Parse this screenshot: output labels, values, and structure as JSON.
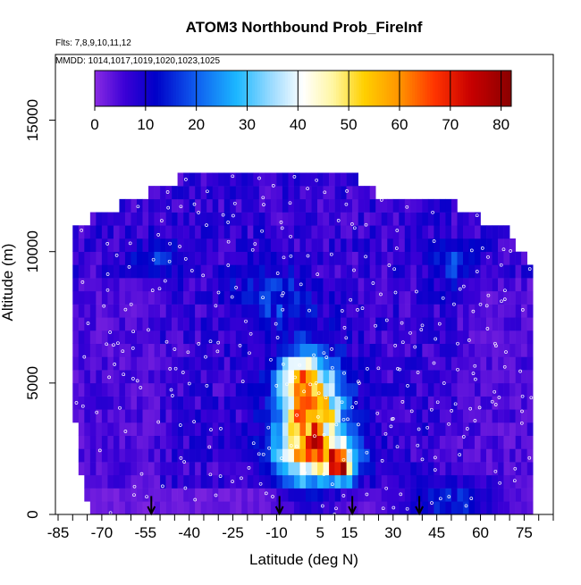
{
  "chart_data": {
    "type": "heatmap",
    "title": "ATOM3 Northbound Prob_FireInf",
    "subtitle_lines": [
      "Flts: 7,8,9,10,11,12",
      "MMDD: 1014,1017,1019,1020,1023,1025"
    ],
    "xlabel": "Latitude (deg N)",
    "ylabel": "Altitude (m)",
    "xlim": [
      -85,
      85
    ],
    "ylim": [
      0,
      17500
    ],
    "x_ticks": [
      -85,
      -80,
      -75,
      -70,
      -65,
      -60,
      -55,
      -50,
      -45,
      -40,
      -35,
      -30,
      -25,
      -20,
      -15,
      -10,
      -5,
      0,
      5,
      10,
      15,
      20,
      25,
      30,
      35,
      40,
      45,
      50,
      55,
      60,
      65,
      70,
      75,
      80,
      85
    ],
    "x_tick_labels": [
      "-85",
      "-70",
      "-55",
      "-40",
      "-25",
      "-10",
      "5",
      "15",
      "30",
      "45",
      "60",
      "75"
    ],
    "x_tick_label_values": [
      -85,
      -70,
      -55,
      -40,
      -25,
      -10,
      5,
      15,
      30,
      45,
      60,
      75
    ],
    "y_ticks": [
      0,
      5000,
      10000,
      15000
    ],
    "y_tick_labels": [
      "0",
      "5000",
      "10000",
      "15000"
    ],
    "colorbar": {
      "range": [
        0,
        82
      ],
      "ticks": [
        0,
        10,
        20,
        30,
        40,
        50,
        60,
        70,
        80
      ],
      "tick_labels": [
        "0",
        "10",
        "20",
        "30",
        "40",
        "50",
        "60",
        "70",
        "80"
      ],
      "stops": [
        {
          "v": 0,
          "color": "#8a2be2"
        },
        {
          "v": 6,
          "color": "#3a00d6"
        },
        {
          "v": 12,
          "color": "#0000c8"
        },
        {
          "v": 20,
          "color": "#0f5ef0"
        },
        {
          "v": 28,
          "color": "#1cb8ff"
        },
        {
          "v": 35,
          "color": "#9fdcff"
        },
        {
          "v": 41,
          "color": "#ffffff"
        },
        {
          "v": 47,
          "color": "#fff6a0"
        },
        {
          "v": 53,
          "color": "#ffd000"
        },
        {
          "v": 60,
          "color": "#ff9400"
        },
        {
          "v": 67,
          "color": "#ff3300"
        },
        {
          "v": 74,
          "color": "#c80000"
        },
        {
          "v": 82,
          "color": "#8a0000"
        }
      ]
    },
    "grid_spec": {
      "lat_start": -80,
      "lat_end": 78,
      "lat_step": 2,
      "alt_start": 0,
      "alt_step": 500,
      "profile": [
        {
          "lat": -80,
          "top": 10500
        },
        {
          "lat": -75,
          "top": 11000
        },
        {
          "lat": -65,
          "top": 11500
        },
        {
          "lat": -55,
          "top": 12000
        },
        {
          "lat": -45,
          "top": 12500
        },
        {
          "lat": -25,
          "top": 13000
        },
        {
          "lat": 10,
          "top": 13000
        },
        {
          "lat": 25,
          "top": 12000
        },
        {
          "lat": 45,
          "top": 12000
        },
        {
          "lat": 60,
          "top": 11000
        },
        {
          "lat": 70,
          "top": 10500
        },
        {
          "lat": 78,
          "top": 9000
        }
      ],
      "bottom_edge": [
        {
          "lat": -80,
          "bottom": 4500
        },
        {
          "lat": -76,
          "bottom": 1000
        },
        {
          "lat": -72,
          "bottom": 0
        }
      ],
      "hotspots": [
        {
          "lat": 2,
          "alt": 3500,
          "amp": 52,
          "wlat": 8,
          "walt": 1500
        },
        {
          "lat": -2,
          "alt": 5200,
          "amp": 30,
          "wlat": 5,
          "walt": 600
        },
        {
          "lat": 12,
          "alt": 1800,
          "amp": 45,
          "wlat": 3,
          "walt": 350
        },
        {
          "lat": 6,
          "alt": 2300,
          "amp": 20,
          "wlat": 10,
          "walt": 500
        },
        {
          "lat": -12,
          "alt": 8200,
          "amp": 10,
          "wlat": 10,
          "walt": 800
        },
        {
          "lat": 50,
          "alt": 9500,
          "amp": 12,
          "wlat": 5,
          "walt": 600
        },
        {
          "lat": 50,
          "alt": 500,
          "amp": 14,
          "wlat": 12,
          "walt": 500
        },
        {
          "lat": -50,
          "alt": 9800,
          "amp": 10,
          "wlat": 6,
          "walt": 500
        }
      ]
    },
    "flight_markers_lat": [
      -53,
      -9,
      16,
      39
    ]
  }
}
